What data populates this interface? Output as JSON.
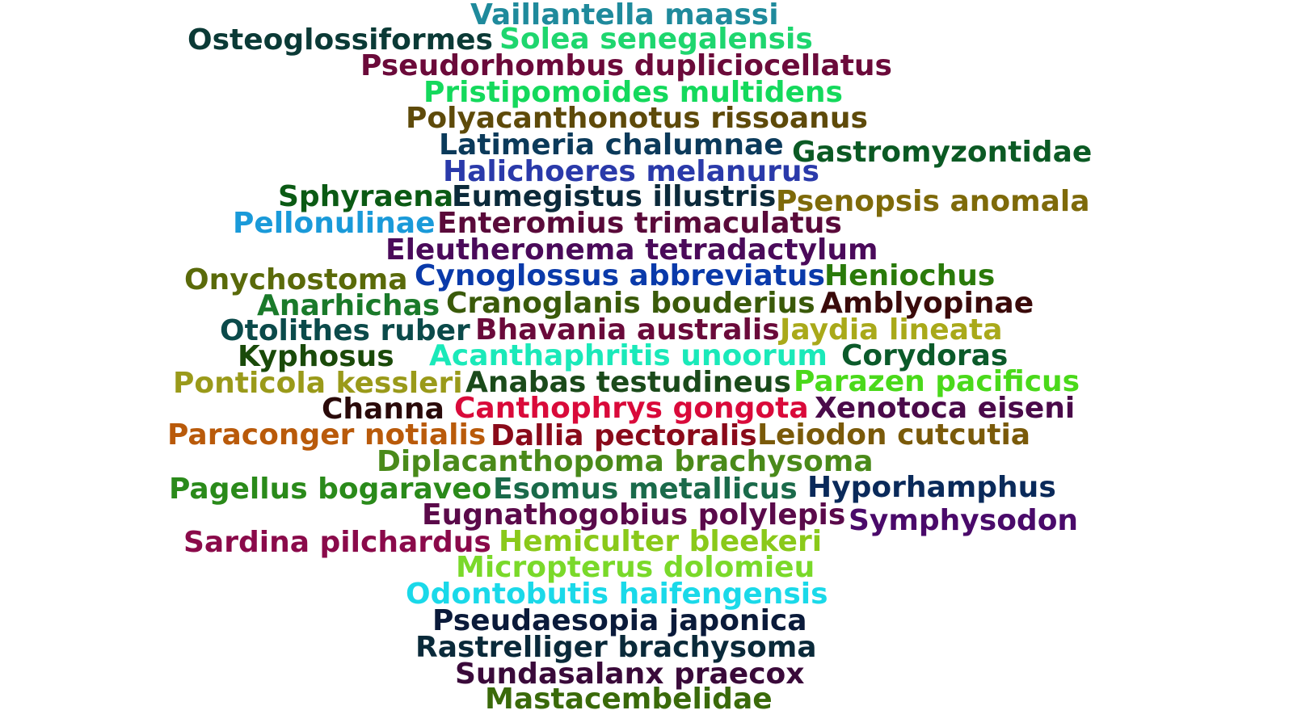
{
  "words": [
    {
      "text": "Vaillantella maassi",
      "color": "#1f8a9c"
    },
    {
      "text": "Osteoglossiformes",
      "color": "#0b3a36"
    },
    {
      "text": "Solea senegalensis",
      "color": "#1ed66e"
    },
    {
      "text": "Pseudorhombus dupliciocellatus",
      "color": "#6b0a3a"
    },
    {
      "text": "Pristipomoides multidens",
      "color": "#14d95c"
    },
    {
      "text": "Polyacanthonotus rissoanus",
      "color": "#5e4a0a"
    },
    {
      "text": "Latimeria chalumnae",
      "color": "#0b3a5a"
    },
    {
      "text": "Gastromyzontidae",
      "color": "#0b5a24"
    },
    {
      "text": "Halichoeres melanurus",
      "color": "#2a3aaa"
    },
    {
      "text": "Sphyraena",
      "color": "#0b5a14"
    },
    {
      "text": "Eumegistus illustris",
      "color": "#0b2a3a"
    },
    {
      "text": "Psenopsis anomala",
      "color": "#7e6a0a"
    },
    {
      "text": "Pellonulinae",
      "color": "#1a9ad9"
    },
    {
      "text": "Enteromius trimaculatus",
      "color": "#5a0a3a"
    },
    {
      "text": "Eleutheronema tetradactylum",
      "color": "#4a0a5a"
    },
    {
      "text": "Onychostoma",
      "color": "#5a6a0a"
    },
    {
      "text": "Cynoglossus abbreviatus",
      "color": "#0a3aaa"
    },
    {
      "text": "Heniochus",
      "color": "#2a7a0a"
    },
    {
      "text": "Anarhichas",
      "color": "#1a7a2a"
    },
    {
      "text": "Cranoglanis bouderius",
      "color": "#3a5a0a"
    },
    {
      "text": "Amblyopinae",
      "color": "#3a0a0a"
    },
    {
      "text": "Otolithes ruber",
      "color": "#0b4a4a"
    },
    {
      "text": "Bhavania australis",
      "color": "#6a0a3a"
    },
    {
      "text": "Jaydia lineata",
      "color": "#a9a91a"
    },
    {
      "text": "Kyphosus",
      "color": "#1a4a0a"
    },
    {
      "text": "Acanthaphritis unoorum",
      "color": "#1ae9b9"
    },
    {
      "text": "Corydoras",
      "color": "#0b5a2a"
    },
    {
      "text": "Ponticola kessleri",
      "color": "#9a9a1a"
    },
    {
      "text": "Anabas testudineus",
      "color": "#1a4a1a"
    },
    {
      "text": "Parazen pacificus",
      "color": "#4ad91a"
    },
    {
      "text": "Channa",
      "color": "#2a0a0a"
    },
    {
      "text": "Canthophrys gongota",
      "color": "#d90a3a"
    },
    {
      "text": "Xenotoca eiseni",
      "color": "#4a0a4a"
    },
    {
      "text": "Paraconger notialis",
      "color": "#b95a0a"
    },
    {
      "text": "Dallia pectoralis",
      "color": "#8a0a1a"
    },
    {
      "text": "Leiodon cutcutia",
      "color": "#7a5a0a"
    },
    {
      "text": "Diplacanthopoma brachysoma",
      "color": "#4a8a1a"
    },
    {
      "text": "Pagellus bogaraveo",
      "color": "#2a8a1a"
    },
    {
      "text": "Esomus metallicus",
      "color": "#1a6a4a"
    },
    {
      "text": "Hyporhamphus",
      "color": "#0a2a5a"
    },
    {
      "text": "Eugnathogobius polylepis",
      "color": "#5a0a4a"
    },
    {
      "text": "Symphysodon",
      "color": "#4a0a6a"
    },
    {
      "text": "Sardina pilchardus",
      "color": "#8a0a4a"
    },
    {
      "text": "Hemiculter bleekeri",
      "color": "#8ac91a"
    },
    {
      "text": "Micropterus dolomieu",
      "color": "#7ad92a"
    },
    {
      "text": "Odontobutis haifengensis",
      "color": "#1ad9e9"
    },
    {
      "text": "Pseudaesopia japonica",
      "color": "#0a1a3a"
    },
    {
      "text": "Rastrelliger brachysoma",
      "color": "#0a2a3a"
    },
    {
      "text": "Sundasalanx praecox",
      "color": "#3a0a3a"
    },
    {
      "text": "Mastacembelidae",
      "color": "#3a6a0a"
    }
  ]
}
